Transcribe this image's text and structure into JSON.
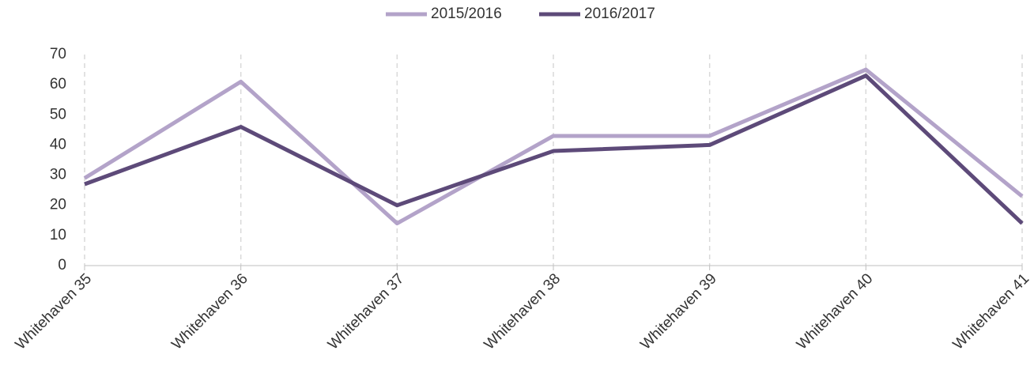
{
  "chart_data": {
    "type": "line",
    "categories": [
      "Whitehaven 35",
      "Whitehaven 36",
      "Whitehaven 37",
      "Whitehaven 38",
      "Whitehaven 39",
      "Whitehaven 40",
      "Whitehaven 41"
    ],
    "series": [
      {
        "name": "2015/2016",
        "color": "#b3a3c9",
        "values": [
          29,
          61,
          14,
          43,
          43,
          65,
          23
        ]
      },
      {
        "name": "2016/2017",
        "color": "#5d4a79",
        "values": [
          27,
          46,
          20,
          38,
          40,
          63,
          14
        ]
      }
    ],
    "ylim": [
      0,
      70
    ],
    "yticks": [
      0,
      10,
      20,
      30,
      40,
      50,
      60,
      70
    ],
    "grid": "x",
    "legend": "top"
  }
}
